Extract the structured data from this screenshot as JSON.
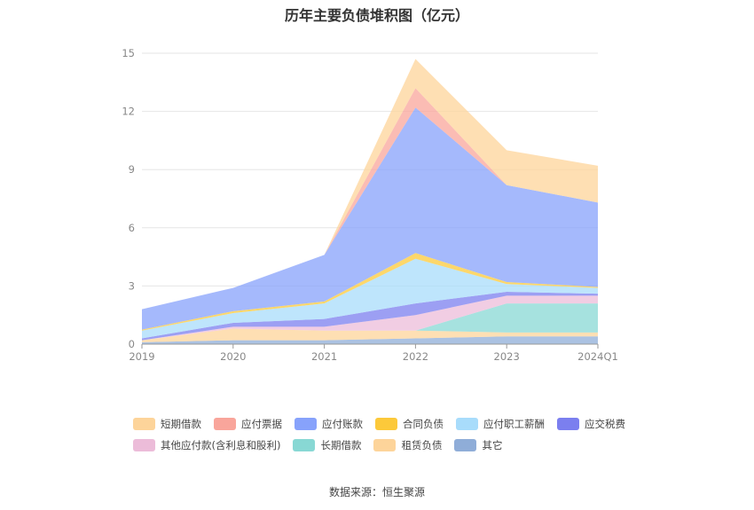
{
  "chart_data": {
    "type": "area",
    "title": "历年主要负债堆积图（亿元）",
    "categories": [
      "2019",
      "2020",
      "2021",
      "2022",
      "2023",
      "2024Q1"
    ],
    "ylim": [
      0,
      15
    ],
    "yticks": [
      "0",
      "3",
      "6",
      "9",
      "12",
      "15"
    ],
    "stacked": true,
    "grid": true,
    "legend_position": "bottom",
    "series": [
      {
        "name": "其它",
        "color": "#8fadd8",
        "values": [
          0.1,
          0.2,
          0.2,
          0.3,
          0.4,
          0.4
        ]
      },
      {
        "name": "租赁负债",
        "color": "#fdd49a",
        "values": [
          0.1,
          0.6,
          0.5,
          0.4,
          0.2,
          0.2
        ]
      },
      {
        "name": "长期借款",
        "color": "#88d8d4",
        "values": [
          0,
          0,
          0,
          0,
          1.5,
          1.5
        ]
      },
      {
        "name": "其他应付款(含利息和股利)",
        "color": "#ecbcd9",
        "values": [
          0,
          0.1,
          0.2,
          0.8,
          0.4,
          0.4
        ]
      },
      {
        "name": "应交税费",
        "color": "#7b7fef",
        "values": [
          0.1,
          0.2,
          0.4,
          0.6,
          0.2,
          0.1
        ]
      },
      {
        "name": "应付职工薪酬",
        "color": "#a8dcfb",
        "values": [
          0.4,
          0.5,
          0.8,
          2.3,
          0.4,
          0.3
        ]
      },
      {
        "name": "合同负债",
        "color": "#fcc93a",
        "values": [
          0.05,
          0.1,
          0.1,
          0.3,
          0.1,
          0.05
        ]
      },
      {
        "name": "应付账款",
        "color": "#87a2fb",
        "values": [
          1.05,
          1.2,
          2.4,
          7.5,
          5.0,
          4.35
        ]
      },
      {
        "name": "应付票据",
        "color": "#f9a59b",
        "values": [
          0,
          0,
          0,
          1.0,
          0,
          0
        ]
      },
      {
        "name": "短期借款",
        "color": "#fdd49a",
        "values": [
          0,
          0,
          0,
          1.5,
          1.8,
          1.9
        ]
      }
    ],
    "legend_order": [
      "短期借款",
      "应付票据",
      "应付账款",
      "合同负债",
      "应付职工薪酬",
      "应交税费",
      "其他应付款(含利息和股利)",
      "长期借款",
      "租赁负债",
      "其它"
    ]
  },
  "source": "数据来源：恒生聚源"
}
